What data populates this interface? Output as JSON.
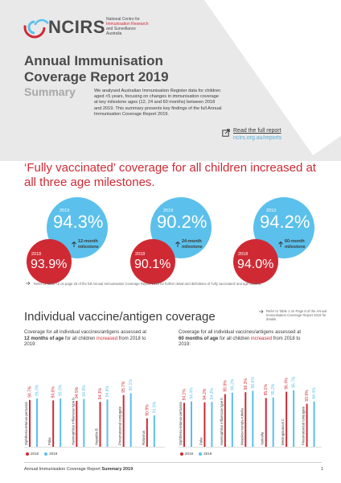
{
  "header": {
    "logo_text": "NCIRS",
    "logo_sub": [
      "National Centre for",
      "Immunisation Research",
      "and Surveillance",
      "Australia"
    ],
    "title": "Annual Immunisation Coverage Report 2019",
    "subtitle": "Summary",
    "intro": "We analysed Australian Immunisation Register data for children aged <5 years, focusing on changes in immunisation coverage at key milestone ages (12, 24 and 60 months) between 2018 and 2019. This summary presents key findings of the full Annual Immunisation Coverage Report 2019.",
    "read_link": "Read the full report",
    "read_url": "ncirs.org.au/reports"
  },
  "headline": "‘Fully vaccinated’ coverage for all children increased at all three age milestones.",
  "milestones": [
    {
      "year_new": "2019",
      "value_new": "94.3%",
      "year_old": "2018",
      "value_old": "93.9%",
      "label": "12-month milestone"
    },
    {
      "year_new": "2019",
      "value_new": "90.2%",
      "year_old": "2018",
      "value_old": "90.1%",
      "label": "24-month milestone"
    },
    {
      "year_new": "2019",
      "value_new": "94.2%",
      "year_old": "2018",
      "value_old": "94.0%",
      "label": "60-month milestone"
    }
  ],
  "footnote": "Refer to Table A2 on page 26 of the full Annual Immunisation Coverage Report 2019 for further detail and definitions of ‘fully vaccinated’ and age cohorts.",
  "section_title": "Individual vaccine/antigen coverage",
  "section_note": "Refer to Table 1 on Page 8 of the Annual Immunisation Coverage Report 2019 for details.",
  "panel12": {
    "desc_before": "Coverage for all individual vaccines/antigens assessed at ",
    "desc_bold": "12 months of age",
    "desc_mid": " for all children ",
    "desc_red": "increased",
    "desc_after": " from 2018 to 2019:"
  },
  "panel60": {
    "desc_before": "Coverage for all individual vaccines/antigens assessed at ",
    "desc_bold": "60 months of age",
    "desc_mid": " for all children ",
    "desc_red": "increased",
    "desc_after": " from 2018 to 2019:"
  },
  "legend": {
    "y2018": "2018",
    "y2019": "2019"
  },
  "colors": {
    "red": "#cf2a34",
    "blue": "#5bc0eb"
  },
  "chart_data": [
    {
      "type": "bar",
      "categories": [
        "Diphtheria-tetanus-pertussis",
        "Polio",
        "Haemophilus influenzae type b",
        "Hepatitis B",
        "Pneumococcal conjugate",
        "Rotavirus"
      ],
      "series": [
        {
          "name": "2018",
          "values": [
            94.7,
            94.6,
            94.5,
            94.3,
            95.7,
            90.9
          ],
          "labels": [
            "94.7%",
            "94.6%",
            "94.5%",
            "94.3%",
            "95.7%",
            "90.9%"
          ]
        },
        {
          "name": "2019",
          "values": [
            95.0,
            95.0,
            94.9,
            94.8,
            96.1,
            91.5
          ],
          "labels": [
            "95.0%",
            "95.0%",
            "94.9%",
            "94.8%",
            "96.1%",
            "91.5%"
          ]
        }
      ],
      "ylim": [
        85,
        100
      ]
    },
    {
      "type": "bar",
      "categories": [
        "Diphtheria-tetanus-pertussis",
        "Polio",
        "Haemophilus influenzae type b",
        "Measles-mumps-rubella",
        "Varicella",
        "Meningococcal C",
        "Pneumococcal conjugate"
      ],
      "series": [
        {
          "name": "2018",
          "values": [
            94.1,
            94.2,
            95.9,
            96.3,
            95.1,
            96.4,
            93.9
          ],
          "labels": [
            "94.1%",
            "94.2%",
            "95.9%",
            "96.3%",
            "95.1%",
            "96.4%",
            "93.9%"
          ]
        },
        {
          "name": "2019",
          "values": [
            94.4,
            94.3,
            96.2,
            96.6,
            95.2,
            96.7,
            94.4
          ],
          "labels": [
            "94.4%",
            "94.3%",
            "96.2%",
            "96.6%",
            "95.2%",
            "96.7%",
            "94.4%"
          ]
        }
      ],
      "ylim": [
        85,
        100
      ]
    }
  ],
  "footer": {
    "text": "Annual Immunisation Coverage Report ",
    "bold": "Summary 2019",
    "page": "1"
  }
}
